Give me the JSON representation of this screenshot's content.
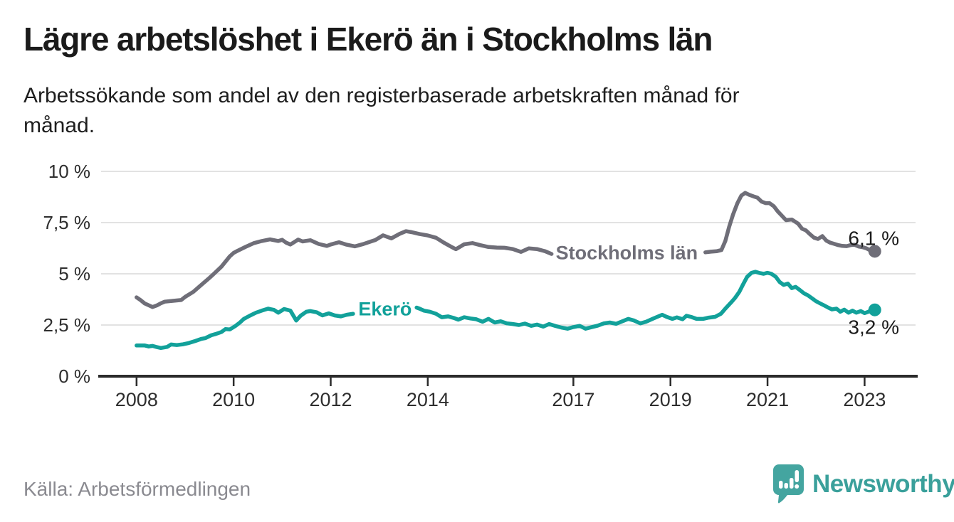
{
  "header": {
    "title": "Lägre arbetslöshet i Ekerö än i Stockholms län",
    "subtitle_lines": [
      "Arbetssökande som andel av den registerbaserade arbetskraften månad för",
      "månad."
    ]
  },
  "footer": {
    "source_label": "Källa: Arbetsförmedlingen",
    "brand_name": "Newsworthy"
  },
  "colors": {
    "stockholm_gray": "#6f6e78",
    "ekero_teal": "#12a19a",
    "grid": "#d9d9d9",
    "axis": "#2b2b2b",
    "tick_text": "#2e2e2e",
    "value_text": "#1b1b1b",
    "source_text": "#8a8a90",
    "brand_teal": "#3fa49f"
  },
  "chart_data": {
    "type": "line",
    "title": "Lägre arbetslöshet i Ekerö än i Stockholms län",
    "unit": "%",
    "grid": true,
    "legend": "inline-labels",
    "ylim": [
      0,
      10
    ],
    "x_range": [
      2007.24,
      2024.05
    ],
    "y_axis": {
      "ticks": [
        {
          "v": 0,
          "label": "0 %"
        },
        {
          "v": 2.5,
          "label": "2,5 %"
        },
        {
          "v": 5,
          "label": "5 %"
        },
        {
          "v": 7.5,
          "label": "7,5 %"
        },
        {
          "v": 10,
          "label": "10 %"
        }
      ]
    },
    "x_axis": {
      "ticks": [
        {
          "v": 2008,
          "label": "2008"
        },
        {
          "v": 2010,
          "label": "2010"
        },
        {
          "v": 2012,
          "label": "2012"
        },
        {
          "v": 2014,
          "label": "2014"
        },
        {
          "v": 2017,
          "label": "2017"
        },
        {
          "v": 2019,
          "label": "2019"
        },
        {
          "v": 2021,
          "label": "2021"
        },
        {
          "v": 2023,
          "label": "2023"
        }
      ]
    },
    "series": [
      {
        "name": "Stockholms län",
        "color": "#6f6e78",
        "label_anchor": {
          "x": 2018.1,
          "y": 6.03
        },
        "end_label": {
          "text": "6,1 %",
          "position": "above"
        },
        "end_value": 6.1,
        "segments": [
          [
            [
              2008,
              3.85
            ],
            [
              2008.08,
              3.72
            ],
            [
              2008.17,
              3.55
            ],
            [
              2008.33,
              3.38
            ],
            [
              2008.42,
              3.46
            ],
            [
              2008.5,
              3.56
            ],
            [
              2008.58,
              3.64
            ],
            [
              2008.75,
              3.68
            ],
            [
              2008.92,
              3.72
            ],
            [
              2009,
              3.87
            ],
            [
              2009.17,
              4.12
            ],
            [
              2009.33,
              4.45
            ],
            [
              2009.5,
              4.8
            ],
            [
              2009.58,
              4.97
            ],
            [
              2009.75,
              5.35
            ],
            [
              2009.92,
              5.85
            ],
            [
              2010,
              6.02
            ],
            [
              2010.08,
              6.12
            ],
            [
              2010.25,
              6.32
            ],
            [
              2010.42,
              6.5
            ],
            [
              2010.58,
              6.6
            ],
            [
              2010.75,
              6.68
            ],
            [
              2010.92,
              6.6
            ],
            [
              2011,
              6.66
            ],
            [
              2011.08,
              6.52
            ],
            [
              2011.17,
              6.43
            ],
            [
              2011.33,
              6.67
            ],
            [
              2011.42,
              6.58
            ],
            [
              2011.58,
              6.64
            ],
            [
              2011.75,
              6.46
            ],
            [
              2011.92,
              6.36
            ],
            [
              2012,
              6.43
            ],
            [
              2012.17,
              6.54
            ],
            [
              2012.33,
              6.42
            ],
            [
              2012.5,
              6.34
            ],
            [
              2012.67,
              6.45
            ],
            [
              2012.83,
              6.58
            ],
            [
              2012.92,
              6.65
            ],
            [
              2013.08,
              6.88
            ],
            [
              2013.25,
              6.73
            ],
            [
              2013.42,
              6.95
            ],
            [
              2013.55,
              7.08
            ],
            [
              2013.67,
              7.03
            ],
            [
              2013.83,
              6.94
            ],
            [
              2014,
              6.87
            ],
            [
              2014.17,
              6.76
            ],
            [
              2014.33,
              6.52
            ],
            [
              2014.5,
              6.3
            ],
            [
              2014.58,
              6.2
            ],
            [
              2014.75,
              6.44
            ],
            [
              2014.92,
              6.5
            ],
            [
              2015.08,
              6.4
            ],
            [
              2015.25,
              6.31
            ],
            [
              2015.42,
              6.28
            ],
            [
              2015.58,
              6.27
            ],
            [
              2015.75,
              6.21
            ],
            [
              2015.92,
              6.07
            ],
            [
              2016.08,
              6.24
            ],
            [
              2016.25,
              6.21
            ],
            [
              2016.42,
              6.1
            ],
            [
              2016.55,
              5.97
            ]
          ],
          [
            [
              2019.72,
              6.05
            ],
            [
              2019.83,
              6.08
            ],
            [
              2019.95,
              6.1
            ],
            [
              2020.05,
              6.16
            ],
            [
              2020.13,
              6.6
            ],
            [
              2020.21,
              7.3
            ],
            [
              2020.29,
              7.9
            ],
            [
              2020.38,
              8.45
            ],
            [
              2020.46,
              8.82
            ],
            [
              2020.54,
              8.95
            ],
            [
              2020.63,
              8.85
            ],
            [
              2020.71,
              8.78
            ],
            [
              2020.79,
              8.72
            ],
            [
              2020.88,
              8.52
            ],
            [
              2020.96,
              8.45
            ],
            [
              2021.04,
              8.45
            ],
            [
              2021.13,
              8.3
            ],
            [
              2021.21,
              8.05
            ],
            [
              2021.29,
              7.85
            ],
            [
              2021.38,
              7.62
            ],
            [
              2021.5,
              7.65
            ],
            [
              2021.63,
              7.45
            ],
            [
              2021.71,
              7.2
            ],
            [
              2021.79,
              7.12
            ],
            [
              2021.88,
              6.92
            ],
            [
              2021.96,
              6.76
            ],
            [
              2022.04,
              6.7
            ],
            [
              2022.13,
              6.84
            ],
            [
              2022.21,
              6.62
            ],
            [
              2022.29,
              6.52
            ],
            [
              2022.38,
              6.46
            ],
            [
              2022.46,
              6.4
            ],
            [
              2022.54,
              6.36
            ],
            [
              2022.63,
              6.35
            ],
            [
              2022.71,
              6.4
            ],
            [
              2022.79,
              6.42
            ],
            [
              2022.88,
              6.33
            ],
            [
              2022.96,
              6.3
            ],
            [
              2023.04,
              6.24
            ],
            [
              2023.13,
              6.13
            ],
            [
              2023.21,
              6.1
            ]
          ]
        ]
      },
      {
        "name": "Ekerö",
        "color": "#12a19a",
        "label_anchor": {
          "x": 2013.12,
          "y": 3.28
        },
        "end_label": {
          "text": "3,2 %",
          "position": "below"
        },
        "end_value": 3.2,
        "segments": [
          [
            [
              2008,
              1.5
            ],
            [
              2008.17,
              1.5
            ],
            [
              2008.25,
              1.45
            ],
            [
              2008.33,
              1.48
            ],
            [
              2008.42,
              1.42
            ],
            [
              2008.5,
              1.38
            ],
            [
              2008.63,
              1.43
            ],
            [
              2008.71,
              1.55
            ],
            [
              2008.83,
              1.52
            ],
            [
              2008.96,
              1.56
            ],
            [
              2009.08,
              1.62
            ],
            [
              2009.21,
              1.72
            ],
            [
              2009.33,
              1.82
            ],
            [
              2009.42,
              1.86
            ],
            [
              2009.54,
              2.0
            ],
            [
              2009.63,
              2.06
            ],
            [
              2009.75,
              2.16
            ],
            [
              2009.83,
              2.3
            ],
            [
              2009.92,
              2.28
            ],
            [
              2010.04,
              2.46
            ],
            [
              2010.13,
              2.62
            ],
            [
              2010.21,
              2.8
            ],
            [
              2010.33,
              2.95
            ],
            [
              2010.46,
              3.1
            ],
            [
              2010.58,
              3.2
            ],
            [
              2010.71,
              3.3
            ],
            [
              2010.83,
              3.24
            ],
            [
              2010.92,
              3.1
            ],
            [
              2011.04,
              3.28
            ],
            [
              2011.17,
              3.2
            ],
            [
              2011.29,
              2.72
            ],
            [
              2011.38,
              2.95
            ],
            [
              2011.5,
              3.15
            ],
            [
              2011.58,
              3.18
            ],
            [
              2011.71,
              3.12
            ],
            [
              2011.83,
              2.97
            ],
            [
              2011.96,
              3.07
            ],
            [
              2012.08,
              2.97
            ],
            [
              2012.21,
              2.92
            ],
            [
              2012.33,
              3.0
            ],
            [
              2012.46,
              3.05
            ]
          ],
          [
            [
              2013.77,
              3.35
            ],
            [
              2013.83,
              3.3
            ],
            [
              2013.92,
              3.2
            ],
            [
              2014.04,
              3.15
            ],
            [
              2014.17,
              3.05
            ],
            [
              2014.29,
              2.88
            ],
            [
              2014.42,
              2.92
            ],
            [
              2014.54,
              2.84
            ],
            [
              2014.63,
              2.76
            ],
            [
              2014.75,
              2.88
            ],
            [
              2014.88,
              2.82
            ],
            [
              2015,
              2.78
            ],
            [
              2015.13,
              2.66
            ],
            [
              2015.25,
              2.8
            ],
            [
              2015.38,
              2.62
            ],
            [
              2015.5,
              2.68
            ],
            [
              2015.63,
              2.58
            ],
            [
              2015.75,
              2.55
            ],
            [
              2015.88,
              2.5
            ],
            [
              2016,
              2.57
            ],
            [
              2016.13,
              2.46
            ],
            [
              2016.25,
              2.52
            ],
            [
              2016.38,
              2.42
            ],
            [
              2016.5,
              2.55
            ],
            [
              2016.63,
              2.45
            ],
            [
              2016.75,
              2.38
            ],
            [
              2016.88,
              2.32
            ],
            [
              2017,
              2.4
            ],
            [
              2017.13,
              2.46
            ],
            [
              2017.25,
              2.32
            ],
            [
              2017.38,
              2.4
            ],
            [
              2017.5,
              2.47
            ],
            [
              2017.63,
              2.58
            ],
            [
              2017.75,
              2.62
            ],
            [
              2017.88,
              2.56
            ],
            [
              2018,
              2.67
            ],
            [
              2018.13,
              2.8
            ],
            [
              2018.25,
              2.72
            ],
            [
              2018.38,
              2.58
            ],
            [
              2018.5,
              2.66
            ],
            [
              2018.63,
              2.8
            ],
            [
              2018.75,
              2.92
            ],
            [
              2018.83,
              3.0
            ],
            [
              2018.92,
              2.9
            ],
            [
              2019.04,
              2.8
            ],
            [
              2019.13,
              2.87
            ],
            [
              2019.25,
              2.78
            ],
            [
              2019.33,
              2.95
            ],
            [
              2019.42,
              2.9
            ],
            [
              2019.54,
              2.8
            ],
            [
              2019.67,
              2.8
            ],
            [
              2019.79,
              2.86
            ],
            [
              2019.92,
              2.9
            ],
            [
              2020.04,
              3.05
            ],
            [
              2020.13,
              3.3
            ],
            [
              2020.25,
              3.6
            ],
            [
              2020.33,
              3.82
            ],
            [
              2020.42,
              4.12
            ],
            [
              2020.5,
              4.5
            ],
            [
              2020.58,
              4.85
            ],
            [
              2020.67,
              5.05
            ],
            [
              2020.75,
              5.1
            ],
            [
              2020.83,
              5.04
            ],
            [
              2020.92,
              5.0
            ],
            [
              2021,
              5.05
            ],
            [
              2021.08,
              5.0
            ],
            [
              2021.17,
              4.85
            ],
            [
              2021.25,
              4.6
            ],
            [
              2021.33,
              4.46
            ],
            [
              2021.42,
              4.52
            ],
            [
              2021.5,
              4.3
            ],
            [
              2021.58,
              4.36
            ],
            [
              2021.67,
              4.2
            ],
            [
              2021.75,
              4.05
            ],
            [
              2021.83,
              3.95
            ],
            [
              2021.92,
              3.8
            ],
            [
              2022,
              3.66
            ],
            [
              2022.08,
              3.56
            ],
            [
              2022.17,
              3.45
            ],
            [
              2022.25,
              3.35
            ],
            [
              2022.33,
              3.26
            ],
            [
              2022.42,
              3.3
            ],
            [
              2022.5,
              3.15
            ],
            [
              2022.58,
              3.25
            ],
            [
              2022.67,
              3.1
            ],
            [
              2022.75,
              3.2
            ],
            [
              2022.83,
              3.1
            ],
            [
              2022.92,
              3.18
            ],
            [
              2023,
              3.08
            ],
            [
              2023.08,
              3.15
            ],
            [
              2023.13,
              3.22
            ],
            [
              2023.21,
              3.24
            ]
          ]
        ]
      }
    ]
  }
}
